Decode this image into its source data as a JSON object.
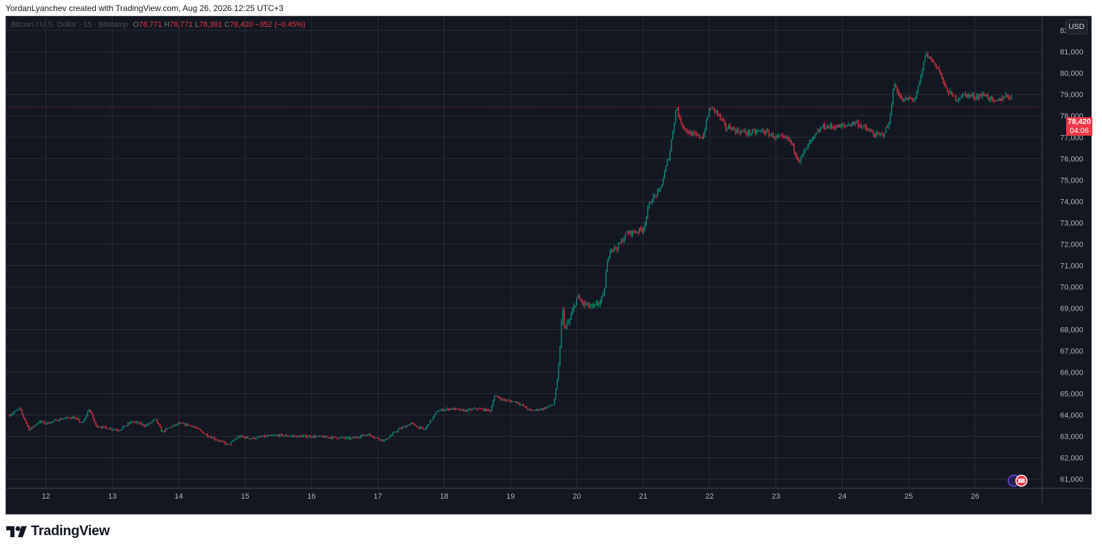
{
  "header": {
    "caption": "YordanLyanchev created with TradingView.com, Aug 26, 2026 12:25 UTC+3"
  },
  "legend": {
    "symbol": "Bitcoin / U.S. Dollar · 15 · Bitstamp",
    "open_label": "O",
    "open": "78,771",
    "high_label": "H",
    "high": "78,771",
    "low_label": "L",
    "low": "78,391",
    "close_label": "C",
    "close": "78,420",
    "change": "−352 (−0.45%)"
  },
  "currency_button": "USD",
  "last_price": {
    "price": "78,420",
    "countdown": "04:06"
  },
  "brand": {
    "name": "TradingView"
  },
  "colors": {
    "background": "#131722",
    "grid": "#2a2e39",
    "up": "#089981",
    "down": "#f23645",
    "axis_text": "#b2b5be"
  },
  "chart_data": {
    "type": "candlestick",
    "title": "Bitcoin / U.S. Dollar · 15 · Bitstamp",
    "x_unit": "day of month (Aug 2026)",
    "x_tick_labels": [
      "12",
      "13",
      "14",
      "15",
      "16",
      "17",
      "18",
      "19",
      "20",
      "21",
      "22",
      "23",
      "24",
      "25",
      "26"
    ],
    "y_tick_labels": [
      "61,000",
      "62,000",
      "63,000",
      "64,000",
      "65,000",
      "66,000",
      "67,000",
      "68,000",
      "69,000",
      "70,000",
      "71,000",
      "72,000",
      "73,000",
      "74,000",
      "75,000",
      "76,000",
      "77,000",
      "78,000",
      "79,000",
      "80,000",
      "81,000",
      "82,000"
    ],
    "ylim": [
      60600,
      82650
    ],
    "xlim": [
      11.4,
      27.0
    ],
    "last_price": 78420,
    "grid": true,
    "series": [
      {
        "name": "BTCUSD",
        "x": [
          11.45,
          11.6,
          11.75,
          11.9,
          12.0,
          12.2,
          12.4,
          12.55,
          12.65,
          12.75,
          12.9,
          13.1,
          13.3,
          13.5,
          13.65,
          13.75,
          13.85,
          14.0,
          14.2,
          14.4,
          14.6,
          14.75,
          14.9,
          15.1,
          15.3,
          15.5,
          15.8,
          16.0,
          16.3,
          16.6,
          16.85,
          17.0,
          17.1,
          17.3,
          17.5,
          17.7,
          17.9,
          18.1,
          18.3,
          18.5,
          18.7,
          18.75,
          18.9,
          19.1,
          19.3,
          19.5,
          19.65,
          19.72,
          19.78,
          19.82,
          19.9,
          20.0,
          20.1,
          20.25,
          20.4,
          20.45,
          20.5,
          20.6,
          20.75,
          20.9,
          21.0,
          21.1,
          21.25,
          21.4,
          21.5,
          21.55,
          21.65,
          21.75,
          21.9,
          22.0,
          22.1,
          22.25,
          22.3,
          22.4,
          22.6,
          22.8,
          23.0,
          23.2,
          23.35,
          23.5,
          23.7,
          23.85,
          24.0,
          24.2,
          24.4,
          24.5,
          24.6,
          24.7,
          24.78,
          24.9,
          25.0,
          25.1,
          25.2,
          25.25,
          25.35,
          25.45,
          25.55,
          25.7,
          25.85,
          26.0,
          26.15,
          26.3,
          26.45,
          26.55
        ],
        "y": [
          64000,
          64300,
          63300,
          63700,
          63600,
          63800,
          63900,
          63600,
          64300,
          63500,
          63400,
          63300,
          63700,
          63500,
          63800,
          63200,
          63400,
          63600,
          63500,
          63100,
          62800,
          62600,
          63000,
          62900,
          63000,
          63050,
          63000,
          63000,
          62950,
          62900,
          63100,
          62900,
          62800,
          63300,
          63600,
          63300,
          64200,
          64300,
          64200,
          64300,
          64200,
          64900,
          64700,
          64600,
          64200,
          64300,
          64500,
          66000,
          69000,
          68000,
          68500,
          69500,
          69200,
          69000,
          69500,
          71000,
          71800,
          71800,
          72500,
          72600,
          72700,
          74000,
          74500,
          76300,
          78500,
          77800,
          77300,
          77100,
          77000,
          78400,
          78200,
          77400,
          77500,
          77300,
          77200,
          77300,
          77000,
          76900,
          75900,
          76700,
          77500,
          77500,
          77500,
          77700,
          77300,
          77100,
          77100,
          77600,
          79500,
          78700,
          78800,
          78800,
          80000,
          80900,
          80600,
          80200,
          79300,
          78800,
          79000,
          78900,
          79000,
          78600,
          78950,
          78900
        ]
      }
    ]
  }
}
